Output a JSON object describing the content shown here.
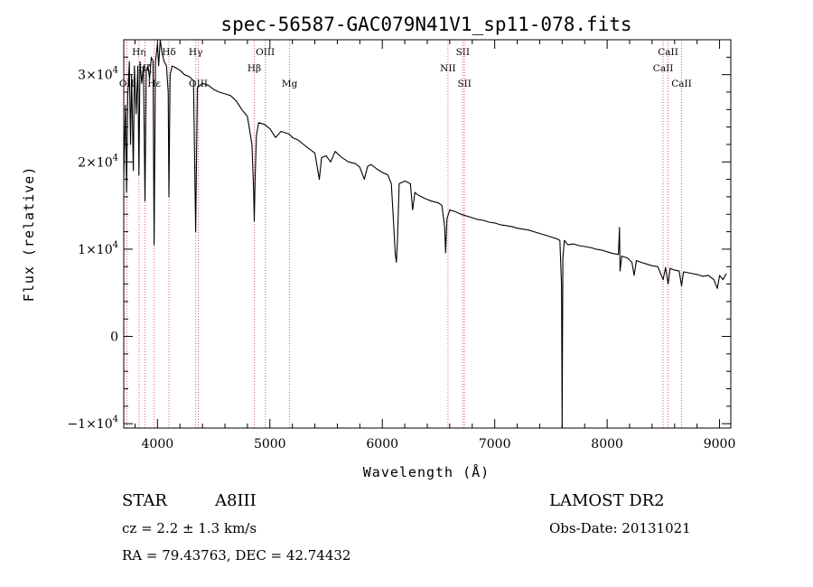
{
  "chart_data": {
    "type": "line",
    "title": "spec-56587-GAC079N41V1_sp11-078.fits",
    "xlabel": "Wavelength (Å)",
    "ylabel": "Flux (relative)",
    "xlim": [
      3700,
      9100
    ],
    "ylim": [
      -10500,
      34000
    ],
    "x_ticks": [
      4000,
      5000,
      6000,
      7000,
      8000,
      9000
    ],
    "y_ticks": [
      {
        "value": -10000,
        "mant": "−1×10",
        "exp": "4"
      },
      {
        "value": 0,
        "mant": "0",
        "exp": ""
      },
      {
        "value": 10000,
        "mant": "1×10",
        "exp": "4"
      },
      {
        "value": 20000,
        "mant": "2×10",
        "exp": "4"
      },
      {
        "value": 30000,
        "mant": "3×10",
        "exp": "4"
      }
    ],
    "grid": false,
    "series": [
      {
        "points": [
          [
            3700,
            18000
          ],
          [
            3715,
            26500
          ],
          [
            3725,
            16500
          ],
          [
            3735,
            27500
          ],
          [
            3750,
            31500
          ],
          [
            3760,
            22000
          ],
          [
            3770,
            30000
          ],
          [
            3785,
            19000
          ],
          [
            3795,
            31000
          ],
          [
            3810,
            25500
          ],
          [
            3825,
            31000
          ],
          [
            3835,
            18500
          ],
          [
            3845,
            31500
          ],
          [
            3860,
            29000
          ],
          [
            3875,
            31000
          ],
          [
            3889,
            15500
          ],
          [
            3900,
            30500
          ],
          [
            3915,
            31000
          ],
          [
            3930,
            29500
          ],
          [
            3945,
            32000
          ],
          [
            3960,
            31500
          ],
          [
            3970,
            10500
          ],
          [
            3982,
            31500
          ],
          [
            4000,
            33500
          ],
          [
            4010,
            31000
          ],
          [
            4025,
            34000
          ],
          [
            4040,
            32500
          ],
          [
            4060,
            31500
          ],
          [
            4080,
            31000
          ],
          [
            4095,
            28000
          ],
          [
            4102,
            16000
          ],
          [
            4112,
            30000
          ],
          [
            4130,
            31000
          ],
          [
            4160,
            30800
          ],
          [
            4200,
            30500
          ],
          [
            4240,
            30000
          ],
          [
            4280,
            29800
          ],
          [
            4320,
            29300
          ],
          [
            4340,
            12000
          ],
          [
            4355,
            28500
          ],
          [
            4400,
            29000
          ],
          [
            4450,
            28800
          ],
          [
            4500,
            28300
          ],
          [
            4550,
            28000
          ],
          [
            4600,
            27800
          ],
          [
            4650,
            27600
          ],
          [
            4700,
            27000
          ],
          [
            4750,
            26000
          ],
          [
            4800,
            25200
          ],
          [
            4840,
            22000
          ],
          [
            4855,
            17000
          ],
          [
            4861,
            13200
          ],
          [
            4868,
            18000
          ],
          [
            4880,
            23000
          ],
          [
            4900,
            24500
          ],
          [
            4950,
            24300
          ],
          [
            5000,
            23800
          ],
          [
            5050,
            22800
          ],
          [
            5100,
            23500
          ],
          [
            5170,
            23200
          ],
          [
            5200,
            22800
          ],
          [
            5250,
            22500
          ],
          [
            5300,
            22000
          ],
          [
            5350,
            21500
          ],
          [
            5400,
            21000
          ],
          [
            5440,
            18000
          ],
          [
            5460,
            20500
          ],
          [
            5500,
            20700
          ],
          [
            5540,
            20000
          ],
          [
            5580,
            21200
          ],
          [
            5640,
            20500
          ],
          [
            5700,
            20000
          ],
          [
            5760,
            19800
          ],
          [
            5800,
            19400
          ],
          [
            5840,
            18000
          ],
          [
            5870,
            19500
          ],
          [
            5900,
            19700
          ],
          [
            5950,
            19200
          ],
          [
            6000,
            18800
          ],
          [
            6050,
            18500
          ],
          [
            6080,
            17500
          ],
          [
            6100,
            13000
          ],
          [
            6115,
            9500
          ],
          [
            6125,
            8500
          ],
          [
            6135,
            11000
          ],
          [
            6150,
            17500
          ],
          [
            6200,
            17800
          ],
          [
            6250,
            17500
          ],
          [
            6270,
            14500
          ],
          [
            6290,
            16500
          ],
          [
            6320,
            16200
          ],
          [
            6380,
            15800
          ],
          [
            6440,
            15500
          ],
          [
            6500,
            15300
          ],
          [
            6530,
            15000
          ],
          [
            6555,
            12500
          ],
          [
            6563,
            9600
          ],
          [
            6575,
            13500
          ],
          [
            6600,
            14500
          ],
          [
            6650,
            14300
          ],
          [
            6700,
            14000
          ],
          [
            6750,
            13800
          ],
          [
            6800,
            13600
          ],
          [
            6850,
            13400
          ],
          [
            6900,
            13300
          ],
          [
            6950,
            13100
          ],
          [
            7000,
            13000
          ],
          [
            7050,
            12800
          ],
          [
            7100,
            12700
          ],
          [
            7150,
            12600
          ],
          [
            7200,
            12400
          ],
          [
            7250,
            12300
          ],
          [
            7300,
            12200
          ],
          [
            7350,
            12000
          ],
          [
            7400,
            11800
          ],
          [
            7450,
            11600
          ],
          [
            7500,
            11400
          ],
          [
            7550,
            11200
          ],
          [
            7580,
            11000
          ],
          [
            7594,
            6000
          ],
          [
            7600,
            -10500
          ],
          [
            7606,
            9000
          ],
          [
            7620,
            11000
          ],
          [
            7650,
            10500
          ],
          [
            7700,
            10600
          ],
          [
            7750,
            10400
          ],
          [
            7800,
            10300
          ],
          [
            7850,
            10200
          ],
          [
            7900,
            10000
          ],
          [
            7950,
            9900
          ],
          [
            8000,
            9700
          ],
          [
            8050,
            9500
          ],
          [
            8100,
            9400
          ],
          [
            8110,
            12500
          ],
          [
            8115,
            7500
          ],
          [
            8130,
            9200
          ],
          [
            8180,
            9000
          ],
          [
            8220,
            8500
          ],
          [
            8240,
            7000
          ],
          [
            8260,
            8700
          ],
          [
            8300,
            8500
          ],
          [
            8350,
            8300
          ],
          [
            8400,
            8100
          ],
          [
            8450,
            8000
          ],
          [
            8498,
            6500
          ],
          [
            8520,
            7900
          ],
          [
            8542,
            6000
          ],
          [
            8560,
            7800
          ],
          [
            8600,
            7600
          ],
          [
            8640,
            7500
          ],
          [
            8662,
            5800
          ],
          [
            8680,
            7400
          ],
          [
            8720,
            7300
          ],
          [
            8760,
            7200
          ],
          [
            8800,
            7100
          ],
          [
            8850,
            6900
          ],
          [
            8900,
            7000
          ],
          [
            8950,
            6500
          ],
          [
            8980,
            5500
          ],
          [
            9000,
            7000
          ],
          [
            9030,
            6500
          ],
          [
            9060,
            7200
          ]
        ]
      }
    ],
    "line_markers": [
      {
        "label": "Hη",
        "x": 3835,
        "tier": 1
      },
      {
        "label": "Hδ",
        "x": 4102,
        "tier": 1
      },
      {
        "label": "Hγ",
        "x": 4340,
        "tier": 1
      },
      {
        "label": "OIII",
        "x": 4959,
        "tier": 1
      },
      {
        "label": "SII",
        "x": 6716,
        "tier": 1
      },
      {
        "label": "CaII",
        "x": 8542,
        "tier": 1
      },
      {
        "label": "Hζ",
        "x": 3889,
        "tier": 2
      },
      {
        "label": "Hβ",
        "x": 4861,
        "tier": 2
      },
      {
        "label": "NII",
        "x": 6584,
        "tier": 2
      },
      {
        "label": "CaII",
        "x": 8498,
        "tier": 2
      },
      {
        "label": "OII",
        "x": 3727,
        "tier": 3
      },
      {
        "label": "Hε",
        "x": 3970,
        "tier": 3
      },
      {
        "label": "OIII",
        "x": 4363,
        "tier": 3
      },
      {
        "label": "Mg",
        "x": 5175,
        "tier": 3
      },
      {
        "label": "SII",
        "x": 6731,
        "tier": 3
      },
      {
        "label": "CaII",
        "x": 8662,
        "tier": 3
      }
    ]
  },
  "info": {
    "object_class": "STAR",
    "subclass": "A8III",
    "survey": "LAMOST DR2",
    "cz": "cz = 2.2 ± 1.3 km/s",
    "obs_date": "Obs-Date: 20131021",
    "coords": "RA =  79.43763, DEC =  42.74432"
  },
  "colors": {
    "spectrum": "#000000",
    "line_markers": "#e06060",
    "axes": "#000000"
  }
}
